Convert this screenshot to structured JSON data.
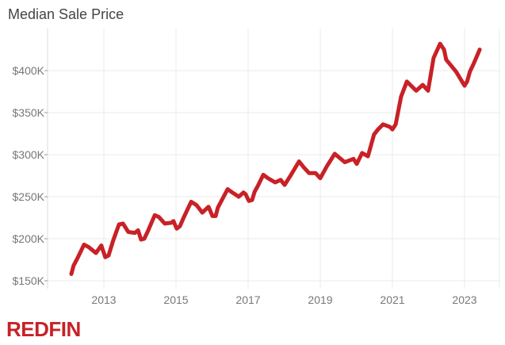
{
  "chart_data": {
    "type": "line",
    "title": "Median Sale Price",
    "xlabel": "",
    "ylabel": "",
    "ylim": [
      141,
      445
    ],
    "xlim": [
      2011.7,
      2024.0
    ],
    "grid": true,
    "y_ticks": [
      150,
      200,
      250,
      300,
      350,
      400
    ],
    "y_tick_labels": [
      "$150K",
      "$200K",
      "$250K",
      "$300K",
      "$350K",
      "$400K"
    ],
    "x_ticks": [
      2013,
      2015,
      2017,
      2019,
      2021,
      2023
    ],
    "x_tick_labels": [
      "2013",
      "2015",
      "2017",
      "2019",
      "2021",
      "2023"
    ],
    "series": [
      {
        "color": "#c82127",
        "x": [
          2012.1,
          2012.16,
          2012.27,
          2012.45,
          2012.58,
          2012.78,
          2012.93,
          2013.04,
          2013.13,
          2013.26,
          2013.42,
          2013.53,
          2013.68,
          2013.86,
          2013.95,
          2014.03,
          2014.12,
          2014.23,
          2014.41,
          2014.52,
          2014.69,
          2014.87,
          2014.93,
          2015.02,
          2015.11,
          2015.2,
          2015.42,
          2015.57,
          2015.73,
          2015.9,
          2016.01,
          2016.1,
          2016.16,
          2016.43,
          2016.56,
          2016.74,
          2016.87,
          2016.93,
          2017.02,
          2017.11,
          2017.18,
          2017.26,
          2017.42,
          2017.55,
          2017.75,
          2017.9,
          2018.01,
          2018.19,
          2018.41,
          2018.54,
          2018.69,
          2018.87,
          2019.0,
          2019.18,
          2019.4,
          2019.68,
          2019.92,
          2020.01,
          2020.16,
          2020.32,
          2020.49,
          2020.6,
          2020.74,
          2020.93,
          2021.0,
          2021.09,
          2021.24,
          2021.4,
          2021.66,
          2021.84,
          2021.99,
          2022.05,
          2022.14,
          2022.32,
          2022.43,
          2022.49,
          2022.76,
          2023.0,
          2023.07,
          2023.15,
          2023.24,
          2023.42
        ],
        "values": [
          158,
          168,
          177,
          193,
          190,
          183,
          192,
          178,
          180,
          198,
          217,
          218,
          208,
          207,
          210,
          199,
          200,
          210,
          228,
          226,
          218,
          219,
          221,
          212,
          215,
          224,
          244,
          240,
          231,
          238,
          227,
          227,
          237,
          259,
          255,
          250,
          255,
          253,
          245,
          246,
          256,
          262,
          276,
          272,
          267,
          270,
          264,
          276,
          292,
          285,
          278,
          278,
          272,
          286,
          301,
          291,
          295,
          289,
          302,
          298,
          324,
          330,
          336,
          333,
          330,
          336,
          369,
          387,
          376,
          383,
          376,
          392,
          415,
          432,
          425,
          413,
          399,
          382,
          387,
          399,
          407,
          425
        ],
        "unit": "K USD"
      }
    ]
  },
  "brand": {
    "logo_text": "REDFIN",
    "color": "#c82127"
  }
}
